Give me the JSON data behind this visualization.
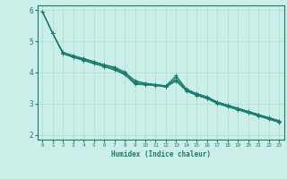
{
  "title": "",
  "xlabel": "Humidex (Indice chaleur)",
  "ylabel": "",
  "bg_color": "#cceee8",
  "line_color": "#1a7a6e",
  "grid_color": "#aaddcc",
  "xlim": [
    -0.5,
    23.5
  ],
  "ylim": [
    1.85,
    6.15
  ],
  "xticks": [
    0,
    1,
    2,
    3,
    4,
    5,
    6,
    7,
    8,
    9,
    10,
    11,
    12,
    13,
    14,
    15,
    16,
    17,
    18,
    19,
    20,
    21,
    22,
    23
  ],
  "yticks": [
    2,
    3,
    4,
    5,
    6
  ],
  "series": [
    [
      5.95,
      5.25,
      4.6,
      4.5,
      4.45,
      4.35,
      4.25,
      4.15,
      4.0,
      3.75,
      3.65,
      3.6,
      3.55,
      3.85,
      3.45,
      3.3,
      3.2,
      3.05,
      2.95,
      2.85,
      2.75,
      2.65,
      2.55,
      2.45
    ],
    [
      5.95,
      5.25,
      4.6,
      4.5,
      4.4,
      4.3,
      4.2,
      4.1,
      3.95,
      3.65,
      3.62,
      3.6,
      3.55,
      3.75,
      3.42,
      3.28,
      3.18,
      3.02,
      2.92,
      2.82,
      2.72,
      2.62,
      2.52,
      2.42
    ],
    [
      5.95,
      5.25,
      4.62,
      4.52,
      4.42,
      4.32,
      4.22,
      4.12,
      3.97,
      3.68,
      3.63,
      3.6,
      3.57,
      3.78,
      3.44,
      3.3,
      3.2,
      3.03,
      2.93,
      2.83,
      2.73,
      2.63,
      2.53,
      2.43
    ],
    [
      5.95,
      5.25,
      4.6,
      4.48,
      4.38,
      4.28,
      4.18,
      4.08,
      3.93,
      3.62,
      3.6,
      3.58,
      3.53,
      3.72,
      3.4,
      3.26,
      3.16,
      3.0,
      2.9,
      2.8,
      2.7,
      2.6,
      2.5,
      2.4
    ],
    [
      5.95,
      5.25,
      4.65,
      4.55,
      4.45,
      4.35,
      4.25,
      4.18,
      4.02,
      3.72,
      3.66,
      3.62,
      3.58,
      3.9,
      3.47,
      3.33,
      3.23,
      3.06,
      2.96,
      2.86,
      2.76,
      2.66,
      2.56,
      2.46
    ]
  ]
}
